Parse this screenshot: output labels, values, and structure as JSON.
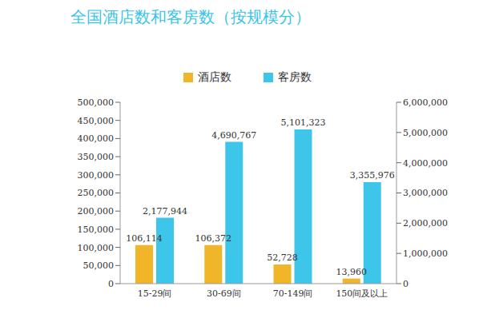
{
  "chart_data": {
    "type": "bar",
    "title": "全国酒店数和客房数（按规模分）",
    "categories": [
      "15-29间",
      "30-69间",
      "70-149间",
      "150间及以上"
    ],
    "series": [
      {
        "name": "酒店数",
        "color": "#f0b528",
        "values": [
          106114,
          106372,
          52728,
          13960
        ],
        "value_labels": [
          "106,114",
          "106,372",
          "52,728",
          "13,960"
        ]
      },
      {
        "name": "客房数",
        "color": "#3ec5ea",
        "axis": "y2",
        "values": [
          2177944,
          4690767,
          5101323,
          3355976
        ],
        "value_labels": [
          "2,177,944",
          "4,690,767",
          "5,101,323",
          "3,355,976"
        ]
      }
    ],
    "ylim": [
      0,
      500000
    ],
    "yticks": [
      0,
      {
        "value": 50000,
        "label": "50,000"
      },
      {
        "value": 100000,
        "label": "100,000"
      },
      {
        "value": 150000,
        "label": "150,000"
      },
      {
        "value": 200000,
        "label": "200,000"
      },
      {
        "value": 250000,
        "label": "250,000"
      },
      {
        "value": 300000,
        "label": "300,000"
      },
      {
        "value": 350000,
        "label": "350,000"
      },
      {
        "value": 400000,
        "label": "400,000"
      },
      {
        "value": 450000,
        "label": "450,000"
      },
      {
        "value": 500000,
        "label": "500,000"
      }
    ],
    "y2lim": [
      0,
      6000000
    ],
    "y2ticks": [
      0,
      {
        "value": 1000000,
        "label": "1,000,000"
      },
      {
        "value": 2000000,
        "label": "2,000,000"
      },
      {
        "value": 3000000,
        "label": "3,000,000"
      },
      {
        "value": 4000000,
        "label": "4,000,000"
      },
      {
        "value": 5000000,
        "label": "5,000,000"
      },
      {
        "value": 6000000,
        "label": "6,000,000"
      }
    ],
    "grid": false,
    "legend": "top",
    "data_labels": true
  }
}
